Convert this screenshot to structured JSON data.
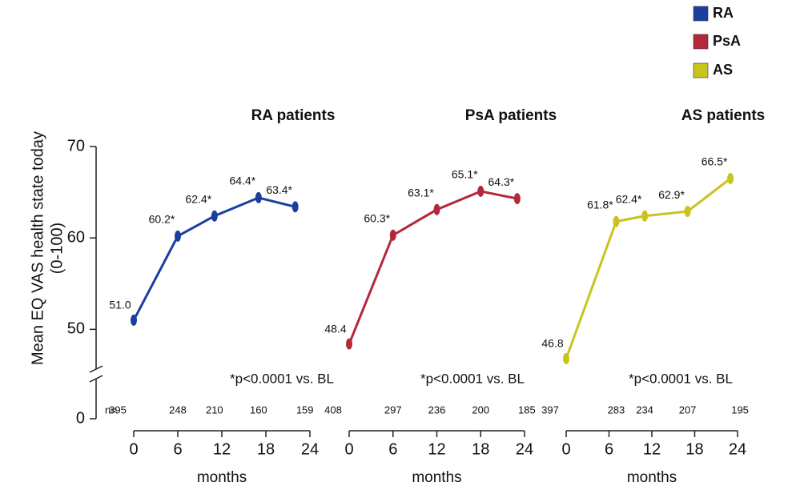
{
  "legend": {
    "corner": "top-right"
  },
  "chart_data": [
    {
      "type": "line",
      "title": "RA patients",
      "ylabel": [
        "Mean EQ VAS health state today",
        "(0-100)"
      ],
      "ylim": [
        46,
        70
      ],
      "yticks": [
        0,
        50,
        60,
        70
      ],
      "y_break": true,
      "xlabel": "months",
      "xlim": [
        0,
        24
      ],
      "xticks": [
        0,
        6,
        12,
        18,
        24
      ],
      "x": [
        0,
        6,
        11,
        17,
        22
      ],
      "series": [
        {
          "name": "RA",
          "color": "#1b3f9e",
          "values": [
            51.0,
            60.2,
            62.4,
            64.4,
            63.4
          ],
          "value_labels": [
            "51.0",
            "60.2*",
            "62.4*",
            "64.4*",
            "63.4*"
          ]
        }
      ],
      "n_label": "n=",
      "n": [
        395,
        248,
        210,
        160,
        159
      ],
      "annotation": "*p<0.0001 vs. BL"
    },
    {
      "type": "line",
      "title": "PsA patients",
      "xlabel": "months",
      "xlim": [
        0,
        24
      ],
      "xticks": [
        0,
        6,
        12,
        18,
        24
      ],
      "x": [
        0,
        6,
        12,
        18,
        23
      ],
      "series": [
        {
          "name": "PsA",
          "color": "#b3283a",
          "values": [
            48.4,
            60.3,
            63.1,
            65.1,
            64.3
          ],
          "value_labels": [
            "48.4",
            "60.3*",
            "63.1*",
            "65.1*",
            "64.3*"
          ]
        }
      ],
      "n": [
        408,
        297,
        236,
        200,
        185
      ],
      "annotation": "*p<0.0001 vs. BL"
    },
    {
      "type": "line",
      "title": "AS patients",
      "xlabel": "months",
      "xlim": [
        0,
        24
      ],
      "xticks": [
        0,
        6,
        12,
        18,
        24
      ],
      "x": [
        0,
        7,
        11,
        17,
        23
      ],
      "series": [
        {
          "name": "AS",
          "color": "#c9c41c",
          "values": [
            46.8,
            61.8,
            62.4,
            62.9,
            66.5
          ],
          "value_labels": [
            "46.8",
            "61.8*",
            "62.4*",
            "62.9*",
            "66.5*"
          ]
        }
      ],
      "n": [
        397,
        283,
        234,
        207,
        195
      ],
      "annotation": "*p<0.0001 vs. BL"
    }
  ]
}
